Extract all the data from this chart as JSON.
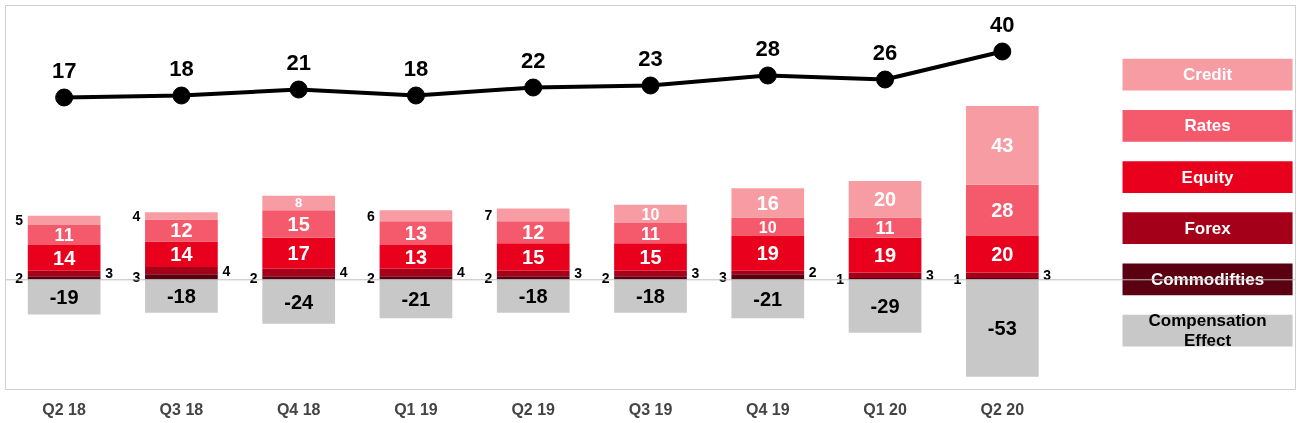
{
  "chart_data": {
    "type": "bar",
    "stacked": true,
    "categories": [
      "Q2 18",
      "Q3 18",
      "Q4 18",
      "Q1 19",
      "Q2 19",
      "Q3 19",
      "Q4 19",
      "Q1 20",
      "Q2 20"
    ],
    "series": [
      {
        "name": "Commodifties",
        "color": "#5a0010",
        "values": [
          2,
          3,
          2,
          2,
          2,
          2,
          3,
          1,
          1
        ]
      },
      {
        "name": "Forex",
        "color": "#a50019",
        "values": [
          3,
          4,
          4,
          4,
          3,
          3,
          2,
          3,
          3
        ]
      },
      {
        "name": "Equity",
        "color": "#e8001c",
        "values": [
          14,
          14,
          17,
          13,
          15,
          15,
          19,
          19,
          20
        ]
      },
      {
        "name": "Rates",
        "color": "#f5596c",
        "values": [
          11,
          12,
          15,
          13,
          12,
          11,
          10,
          11,
          28
        ]
      },
      {
        "name": "Credit",
        "color": "#f89ca4",
        "values": [
          5,
          4,
          8,
          6,
          7,
          10,
          16,
          20,
          43
        ]
      },
      {
        "name": "Compensation Effect",
        "color": "#c8c8c8",
        "values": [
          -19,
          -18,
          -24,
          -21,
          -18,
          -18,
          -21,
          -29,
          -53
        ]
      },
      {
        "type": "line",
        "axis": "y2",
        "color": "#000000",
        "marker": "circle",
        "values": [
          17,
          18,
          21,
          18,
          22,
          23,
          28,
          26,
          40
        ]
      }
    ],
    "ylim": [
      -60,
      150
    ],
    "y2lim": [
      -129,
      63
    ],
    "data_labels": true,
    "tick_labels": "x",
    "grid": false,
    "legend": "right",
    "ref_lines": [
      {
        "axis": "y",
        "value": 0,
        "color": "#bfbfbf"
      }
    ]
  }
}
